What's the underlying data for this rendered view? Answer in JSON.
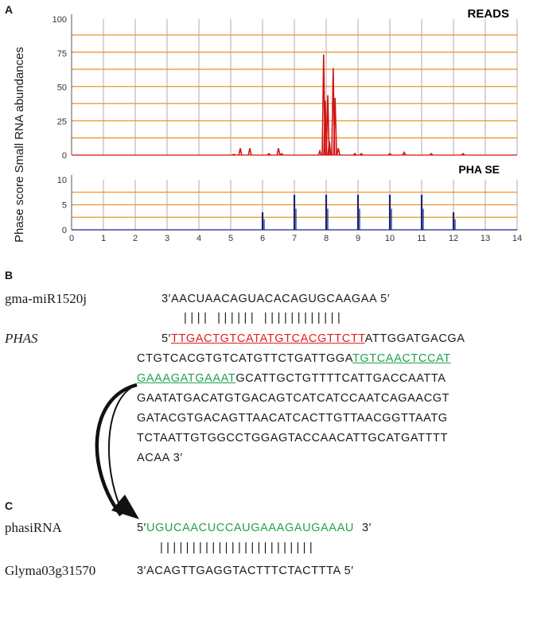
{
  "panel_a": {
    "letter": "A",
    "y_axis_label": "Phase score  Small RNA abundances",
    "reads_title": "READS",
    "phase_title": "PHA SE",
    "reads_yticks": [
      "100",
      "75",
      "50",
      "25",
      "0"
    ],
    "phase_yticks": [
      "10",
      "5",
      "0"
    ],
    "xticks": [
      "0",
      "1",
      "2",
      "3",
      "4",
      "5",
      "6",
      "7",
      "8",
      "9",
      "10",
      "11",
      "12",
      "13",
      "14"
    ]
  },
  "chart_data": [
    {
      "type": "line",
      "title": "READS",
      "xlim": [
        0,
        14
      ],
      "ylim": [
        0,
        100
      ],
      "grid": true,
      "series": [
        {
          "x": [
            5.1,
            5.3,
            5.6,
            6.2,
            6.5,
            6.6,
            7.8,
            7.92,
            7.97,
            8.05,
            8.1,
            8.22,
            8.28,
            8.38,
            8.9,
            9.1,
            10.0,
            10.45,
            11.3,
            12.3
          ],
          "values": [
            0.5,
            5,
            5,
            1,
            5,
            1,
            3,
            74,
            40,
            44,
            10,
            64,
            42,
            5,
            1,
            1,
            1,
            2,
            1,
            1
          ]
        }
      ],
      "color": "#d11313"
    },
    {
      "type": "bar",
      "title": "PHA SE",
      "xlim": [
        0,
        14
      ],
      "ylim": [
        0,
        10
      ],
      "grid": true,
      "x": [
        6,
        7,
        8,
        9,
        10,
        11,
        12
      ],
      "values": [
        3.5,
        7,
        7,
        7,
        7,
        7,
        3.5
      ],
      "color": "#1b237a"
    }
  ],
  "panel_b": {
    "letter": "B",
    "mirna_name": "gma-miR1520j",
    "mirna_seq": "3′AACUAACAGUACACAGUGCAAGAA  5′",
    "pairing": "|||| |||||| ||||||||||||",
    "phas_name": "PHAS",
    "line1_prefix": "5′",
    "line1_red": "TTGACTGTCATATGTCACGTTCTT",
    "line1_rest": "ATTGGATGACGA",
    "line2_black": "CTGTCACGTGTCATGTTCTGATTGGA",
    "line2_green": "TGTCAACTCCAT",
    "line3_green": "GAAAGATGAAAT",
    "line3_black": "GCATTGCTGTTTTCATTGACCAATTA",
    "line4": "GAATATGACATGTGACAGTCATCATCCAATCAGAACGT",
    "line5": "GATACGTGACAGTTAACATCACTTGTTAACGGTTAATG",
    "line6": "TCTAATTGTGGCCTGGAGTACCAACATTGCATGATTTT",
    "line7": "ACAA 3′"
  },
  "panel_c": {
    "letter": "C",
    "phasirna_name": "phasiRNA",
    "phasirna_prefix": "5′",
    "phasirna_seq": "UGUCAACUCCAUGAAAGAUGAAAU",
    "phasirna_suffix": "3′",
    "pairing": "||||||||||||||||||||||||",
    "target_name": "Glyma03g31570",
    "target_seq": "3′ACAGTTGAGGTACTTTCTACTTTA  5′"
  },
  "colors": {
    "grid_h": "#e8962a",
    "grid_v": "#c8c8c8",
    "reads": "#d11313",
    "phase": "#1b237a",
    "red_seq": "#e11c1c",
    "green_seq": "#22a14f"
  }
}
